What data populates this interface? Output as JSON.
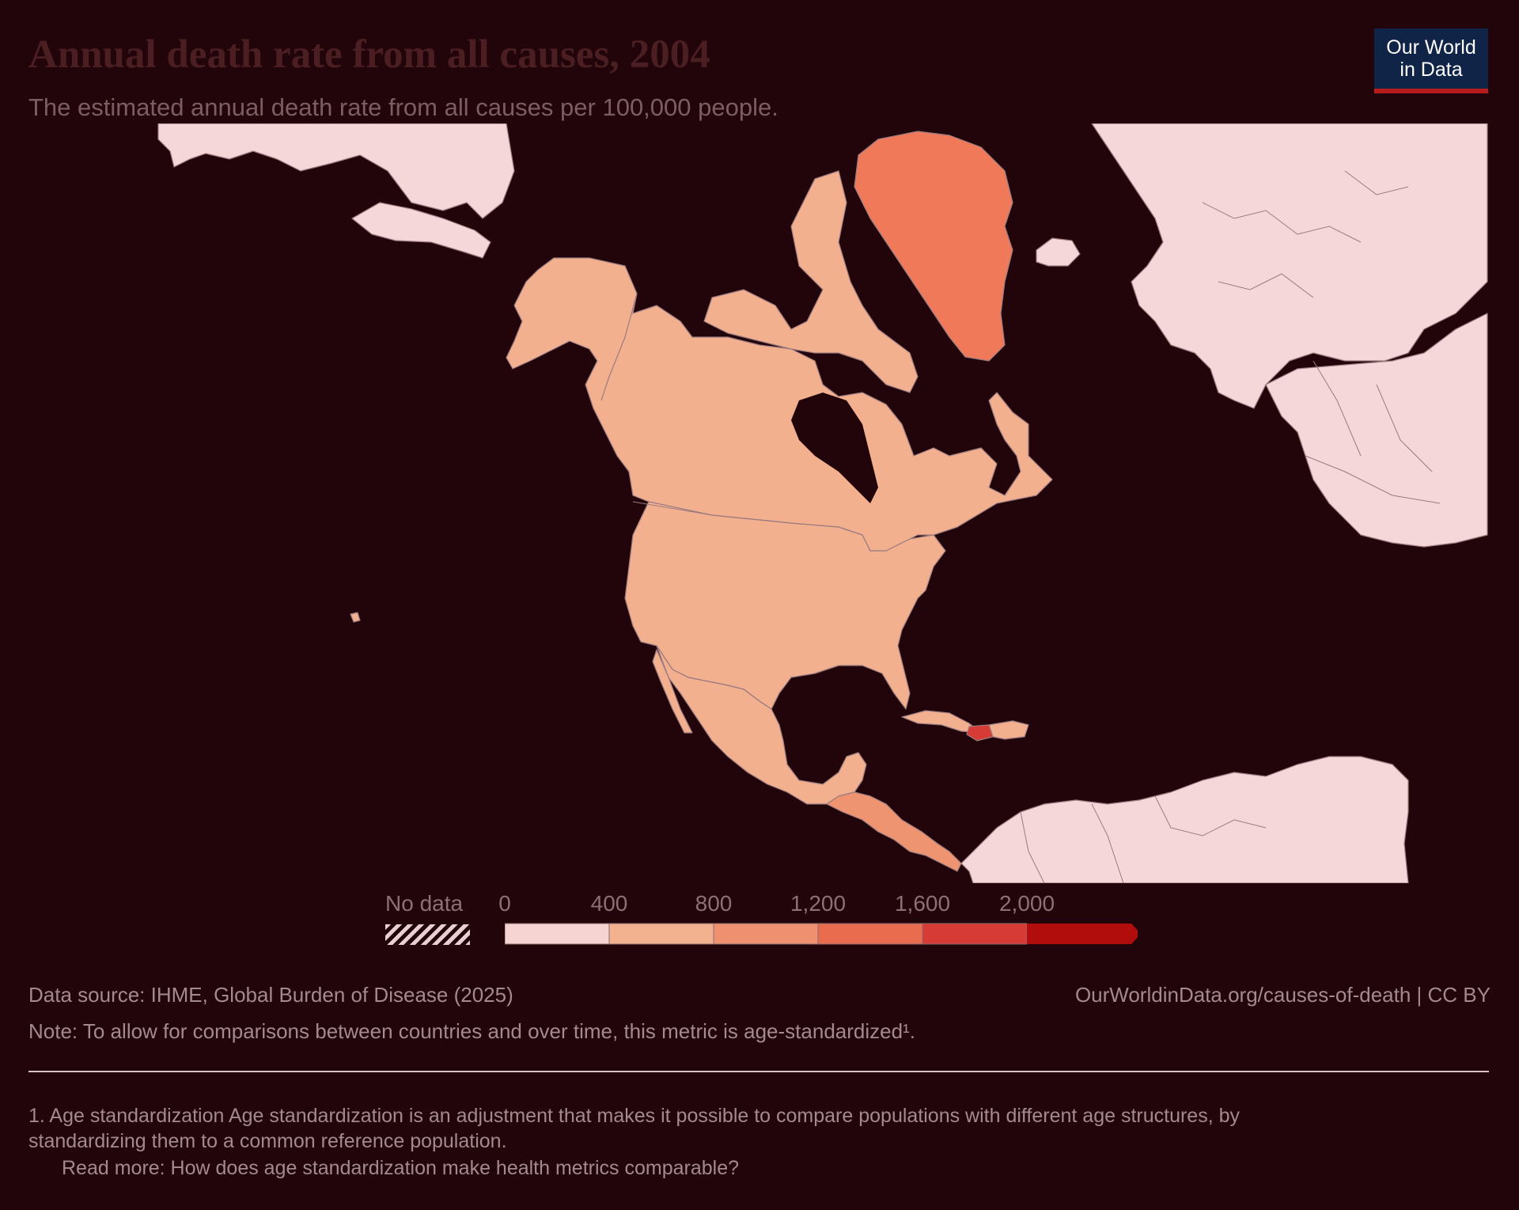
{
  "header": {
    "title": "Annual death rate from all causes, 2004",
    "subtitle": "The estimated annual death rate from all causes per 100,000 people."
  },
  "logo": {
    "line1": "Our World",
    "line2": "in Data"
  },
  "legend": {
    "no_data_label": "No data",
    "ticks": [
      "0",
      "400",
      "800",
      "1,200",
      "1,600",
      "2,000"
    ],
    "colors": [
      "#f6d4d2",
      "#f2b18f",
      "#ef9170",
      "#ea6c4f",
      "#d63b35",
      "#b10d0d"
    ]
  },
  "map_data": {
    "metric": "death rate per 100,000",
    "year": "2004",
    "regions": [
      {
        "region": "Canada",
        "bin": "400–800"
      },
      {
        "region": "United States",
        "bin": "400–800"
      },
      {
        "region": "Mexico",
        "bin": "400–800"
      },
      {
        "region": "Greenland",
        "bin": "1,200–1,600"
      },
      {
        "region": "Central America",
        "bin": "800–1,200"
      },
      {
        "region": "Haiti",
        "bin": "1,600–2,000"
      },
      {
        "region": "Other countries",
        "bin": "No data"
      }
    ],
    "colors": {
      "no_data": "#f5d6d9",
      "bin_400_800": "#f3b08e",
      "bin_800_1200": "#ef9470",
      "bin_1200_1600": "#ef7958",
      "bin_1600_2000": "#d63b35",
      "ocean": "#22050b"
    }
  },
  "footer": {
    "source": "Data source: IHME, Global Burden of Disease (2025)",
    "url": "OurWorldinData.org/causes-of-death | CC BY",
    "note": "Note: To allow for comparisons between countries and over time, this metric is age-standardized¹.",
    "footnote_line1": "1. Age standardization Age standardization is an adjustment that makes it possible to compare populations with different age structures, by",
    "footnote_line2": "standardizing them to a common reference population.",
    "read_more": "Read more: How does age standardization make health metrics comparable?"
  }
}
